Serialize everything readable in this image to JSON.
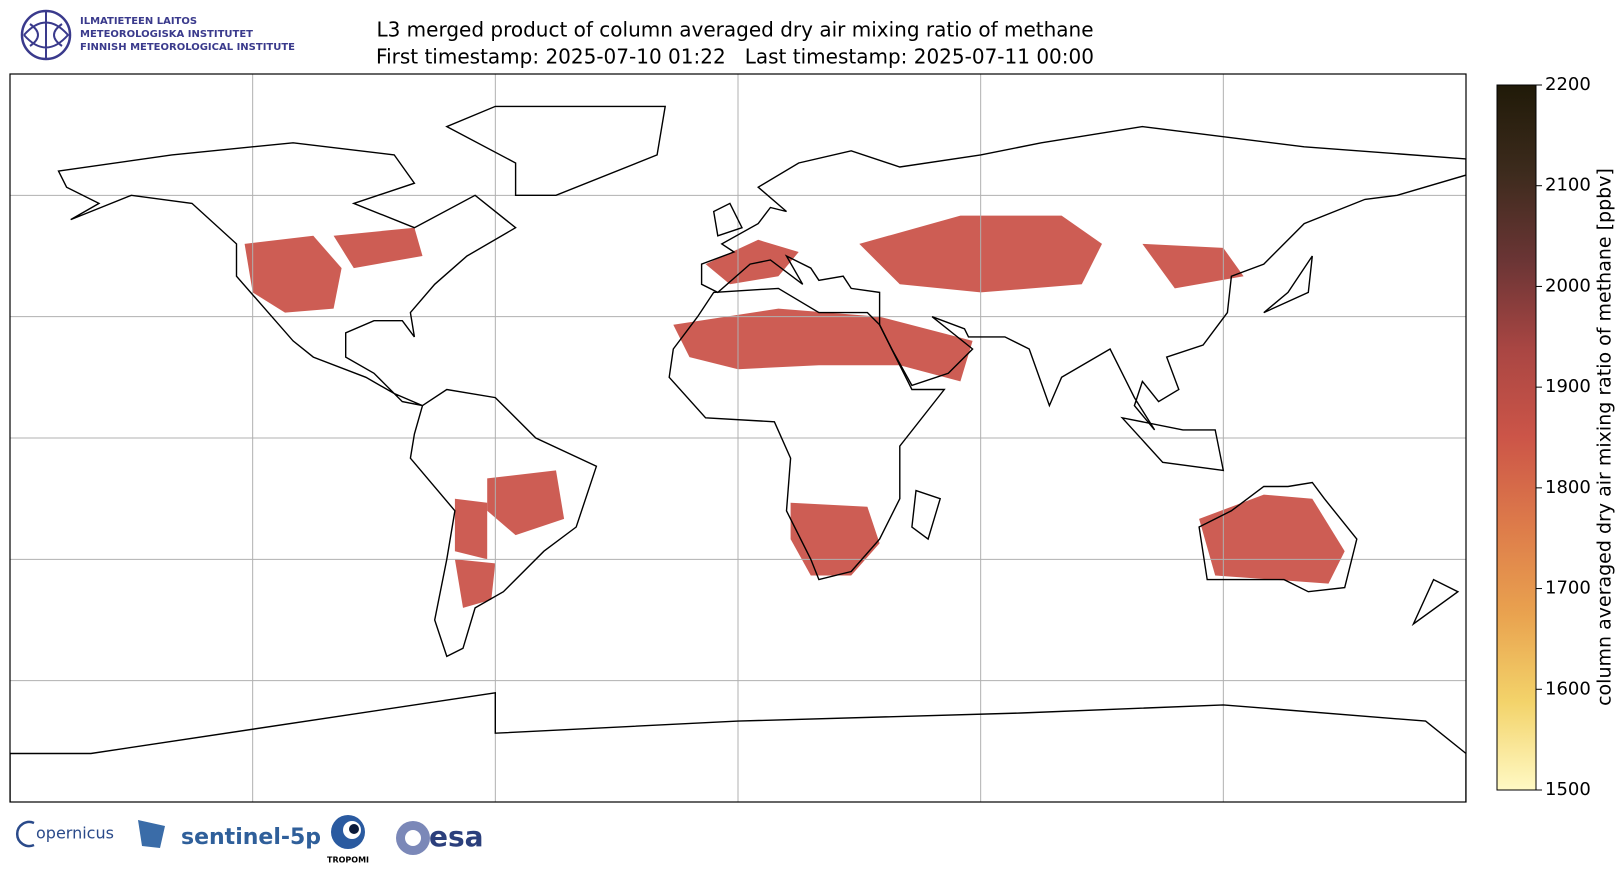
{
  "header": {
    "logo_lines": [
      "ILMATIETEEN LAITOS",
      "METEOROLOGISKA INSTITUTET",
      "FINNISH METEOROLOGICAL INSTITUTE"
    ],
    "title": "L3 merged product of column averaged dry air mixing ratio of methane",
    "subtitle": "First timestamp: 2025-07-10 01:22   Last timestamp: 2025-07-11 00:00"
  },
  "colorbar": {
    "label": "column averaged dry air mixing ratio of methane [ppbv]",
    "lim": [
      1500,
      2200
    ],
    "ticks": [
      1500,
      1600,
      1700,
      1800,
      1900,
      2000,
      2100,
      2200
    ],
    "colormap": [
      "#fff9c4",
      "#f3d36a",
      "#e9a24f",
      "#dd7b4a",
      "#cc5548",
      "#a94643",
      "#6b3535",
      "#3d2b1d",
      "#201a08"
    ]
  },
  "footer": {
    "logos": [
      "opernicus",
      "sentinel-5p",
      "TROPOMI",
      "esa"
    ]
  }
}
